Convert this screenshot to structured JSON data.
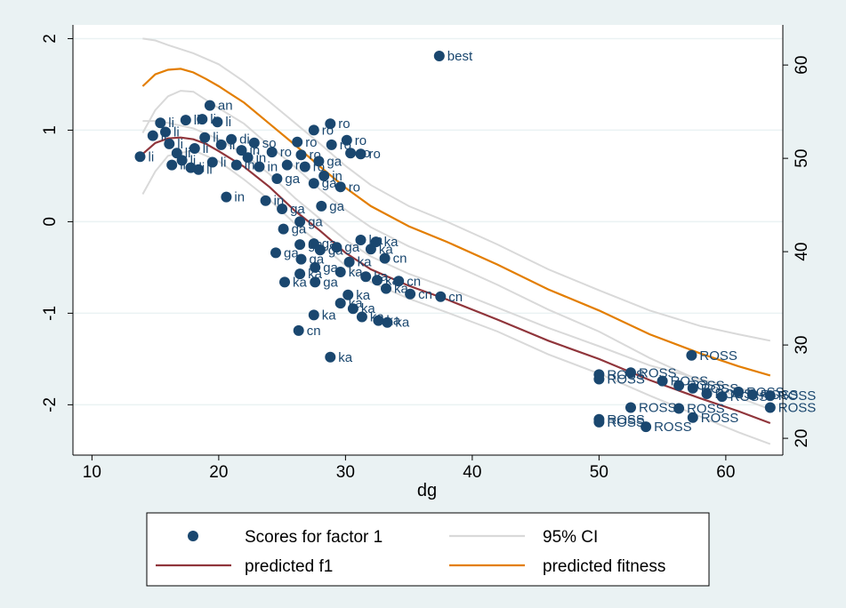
{
  "chart_data": {
    "type": "scatter",
    "xlabel": "dg",
    "x_ticks": [
      10,
      20,
      30,
      40,
      50,
      60
    ],
    "y_left_ticks": [
      -2,
      -1,
      0,
      1,
      2
    ],
    "y_right_ticks": [
      20,
      30,
      40,
      50,
      60
    ],
    "xlim": [
      8.5,
      64.5
    ],
    "ylim_left": [
      -2.55,
      2.15
    ],
    "ylim_right": [
      18.2,
      64.3
    ],
    "grid": true,
    "legend_position": "bottom",
    "colors": {
      "background": "#eaf2f3",
      "plot_background": "#ffffff",
      "gridline": "#eaf2f3",
      "points": "#1a476f",
      "ci": "#d9d9d9",
      "predicted_f1": "#90353b",
      "predicted_fitness": "#e37e00"
    },
    "legend": [
      {
        "label": "Scores for factor 1",
        "kind": "marker",
        "color": "#1a476f"
      },
      {
        "label": "95% CI",
        "kind": "line",
        "color": "#d9d9d9"
      },
      {
        "label": "predicted f1",
        "kind": "line",
        "color": "#90353b"
      },
      {
        "label": "predicted fitness",
        "kind": "line",
        "color": "#e37e00"
      }
    ],
    "series": [
      {
        "name": "Scores for factor 1",
        "axis": "left",
        "points": [
          {
            "x": 13.8,
            "y": 0.71,
            "label": "li"
          },
          {
            "x": 14.8,
            "y": 0.94,
            "label": "li"
          },
          {
            "x": 15.4,
            "y": 1.08,
            "label": "li"
          },
          {
            "x": 15.8,
            "y": 0.98,
            "label": "li"
          },
          {
            "x": 16.1,
            "y": 0.85,
            "label": "li"
          },
          {
            "x": 16.3,
            "y": 0.62,
            "label": "li"
          },
          {
            "x": 16.7,
            "y": 0.75,
            "label": "li"
          },
          {
            "x": 17.1,
            "y": 0.67,
            "label": "li"
          },
          {
            "x": 17.4,
            "y": 1.11,
            "label": "li"
          },
          {
            "x": 17.8,
            "y": 0.59,
            "label": "li"
          },
          {
            "x": 18.1,
            "y": 0.8,
            "label": "li"
          },
          {
            "x": 18.4,
            "y": 0.57,
            "label": "li"
          },
          {
            "x": 18.7,
            "y": 1.12,
            "label": "li"
          },
          {
            "x": 18.9,
            "y": 0.92,
            "label": "li"
          },
          {
            "x": 19.3,
            "y": 1.27,
            "label": "an"
          },
          {
            "x": 19.5,
            "y": 0.65,
            "label": "li"
          },
          {
            "x": 19.9,
            "y": 1.09,
            "label": "li"
          },
          {
            "x": 20.2,
            "y": 0.84,
            "label": "li"
          },
          {
            "x": 20.6,
            "y": 0.27,
            "label": "in"
          },
          {
            "x": 21.0,
            "y": 0.9,
            "label": "di"
          },
          {
            "x": 21.4,
            "y": 0.62,
            "label": "in"
          },
          {
            "x": 21.8,
            "y": 0.78,
            "label": "in"
          },
          {
            "x": 22.3,
            "y": 0.7,
            "label": "in"
          },
          {
            "x": 22.8,
            "y": 0.86,
            "label": "so"
          },
          {
            "x": 23.2,
            "y": 0.6,
            "label": "in"
          },
          {
            "x": 23.7,
            "y": 0.23,
            "label": "in"
          },
          {
            "x": 24.2,
            "y": 0.76,
            "label": "ro"
          },
          {
            "x": 24.6,
            "y": 0.47,
            "label": "ga"
          },
          {
            "x": 25.0,
            "y": 0.14,
            "label": "ga"
          },
          {
            "x": 25.4,
            "y": 0.62,
            "label": "ro"
          },
          {
            "x": 26.2,
            "y": 0.87,
            "label": "ro"
          },
          {
            "x": 26.5,
            "y": 0.73,
            "label": "ro"
          },
          {
            "x": 26.8,
            "y": 0.6,
            "label": "ro"
          },
          {
            "x": 27.5,
            "y": 1.0,
            "label": "ro"
          },
          {
            "x": 27.5,
            "y": 0.42,
            "label": "ga"
          },
          {
            "x": 27.9,
            "y": 0.66,
            "label": "ga"
          },
          {
            "x": 28.3,
            "y": 0.5,
            "label": "in"
          },
          {
            "x": 28.8,
            "y": 1.07,
            "label": "ro"
          },
          {
            "x": 28.9,
            "y": 0.84,
            "label": "ro"
          },
          {
            "x": 29.6,
            "y": 0.38,
            "label": "ro"
          },
          {
            "x": 30.1,
            "y": 0.89,
            "label": "ro"
          },
          {
            "x": 30.4,
            "y": 0.75,
            "label": "ro"
          },
          {
            "x": 31.2,
            "y": 0.74,
            "label": "ro"
          },
          {
            "x": 28.1,
            "y": 0.17,
            "label": "ga"
          },
          {
            "x": 26.4,
            "y": 0.0,
            "label": "ga"
          },
          {
            "x": 25.1,
            "y": -0.08,
            "label": "ga"
          },
          {
            "x": 26.4,
            "y": -0.25,
            "label": "ga"
          },
          {
            "x": 24.5,
            "y": -0.34,
            "label": "ga"
          },
          {
            "x": 26.5,
            "y": -0.41,
            "label": "ga"
          },
          {
            "x": 27.5,
            "y": -0.24,
            "label": "ga"
          },
          {
            "x": 28.0,
            "y": -0.31,
            "label": "ga"
          },
          {
            "x": 29.3,
            "y": -0.28,
            "label": "ga"
          },
          {
            "x": 27.6,
            "y": -0.5,
            "label": "ga"
          },
          {
            "x": 25.2,
            "y": -0.66,
            "label": "ka"
          },
          {
            "x": 26.4,
            "y": -0.57,
            "label": "ka"
          },
          {
            "x": 27.6,
            "y": -0.66,
            "label": "ga"
          },
          {
            "x": 29.6,
            "y": -0.55,
            "label": "ka"
          },
          {
            "x": 30.3,
            "y": -0.44,
            "label": "ka"
          },
          {
            "x": 31.2,
            "y": -0.2,
            "label": "ka"
          },
          {
            "x": 32.0,
            "y": -0.3,
            "label": "ka"
          },
          {
            "x": 32.4,
            "y": -0.22,
            "label": "ka"
          },
          {
            "x": 33.1,
            "y": -0.4,
            "label": "cn"
          },
          {
            "x": 31.6,
            "y": -0.6,
            "label": "ka"
          },
          {
            "x": 32.5,
            "y": -0.64,
            "label": "ka"
          },
          {
            "x": 33.2,
            "y": -0.73,
            "label": "ka"
          },
          {
            "x": 34.2,
            "y": -0.65,
            "label": "cn"
          },
          {
            "x": 35.1,
            "y": -0.79,
            "label": "cn"
          },
          {
            "x": 37.5,
            "y": -0.82,
            "label": "cn"
          },
          {
            "x": 29.6,
            "y": -0.89,
            "label": "ka"
          },
          {
            "x": 30.2,
            "y": -0.8,
            "label": "ka"
          },
          {
            "x": 30.6,
            "y": -0.95,
            "label": "ka"
          },
          {
            "x": 31.3,
            "y": -1.04,
            "label": "ka"
          },
          {
            "x": 32.6,
            "y": -1.08,
            "label": "ka"
          },
          {
            "x": 33.3,
            "y": -1.1,
            "label": "ka"
          },
          {
            "x": 27.5,
            "y": -1.02,
            "label": "ka"
          },
          {
            "x": 26.3,
            "y": -1.19,
            "label": "cn"
          },
          {
            "x": 28.8,
            "y": -1.48,
            "label": "ka"
          },
          {
            "x": 37.4,
            "y": 1.81,
            "label": "best"
          },
          {
            "x": 57.3,
            "y": -1.46,
            "label": "ROSS"
          },
          {
            "x": 50.0,
            "y": -1.67,
            "label": "ROSS"
          },
          {
            "x": 50.0,
            "y": -1.72,
            "label": "ROSS"
          },
          {
            "x": 52.5,
            "y": -1.65,
            "label": "ROSS"
          },
          {
            "x": 55.0,
            "y": -1.74,
            "label": "ROSS"
          },
          {
            "x": 56.3,
            "y": -1.79,
            "label": "ROSS"
          },
          {
            "x": 57.4,
            "y": -1.82,
            "label": "ROSS"
          },
          {
            "x": 58.5,
            "y": -1.88,
            "label": "ROSS"
          },
          {
            "x": 59.7,
            "y": -1.91,
            "label": "ROSS"
          },
          {
            "x": 61.0,
            "y": -1.86,
            "label": "ROSS"
          },
          {
            "x": 62.1,
            "y": -1.89,
            "label": "ROSS"
          },
          {
            "x": 63.5,
            "y": -1.9,
            "label": "ROSS"
          },
          {
            "x": 63.5,
            "y": -2.03,
            "label": "ROSS"
          },
          {
            "x": 52.5,
            "y": -2.03,
            "label": "ROSS"
          },
          {
            "x": 56.3,
            "y": -2.04,
            "label": "ROSS"
          },
          {
            "x": 57.4,
            "y": -2.14,
            "label": "ROSS"
          },
          {
            "x": 50.0,
            "y": -2.16,
            "label": "ROSS"
          },
          {
            "x": 50.0,
            "y": -2.19,
            "label": "ROSS"
          },
          {
            "x": 53.7,
            "y": -2.24,
            "label": "ROSS"
          }
        ]
      },
      {
        "name": "predicted f1",
        "axis": "left",
        "points": [
          [
            14,
            0.74
          ],
          [
            15,
            0.86
          ],
          [
            16,
            0.91
          ],
          [
            17,
            0.92
          ],
          [
            18,
            0.9
          ],
          [
            19,
            0.85
          ],
          [
            20,
            0.77
          ],
          [
            22,
            0.6
          ],
          [
            24,
            0.38
          ],
          [
            26,
            0.12
          ],
          [
            28,
            -0.1
          ],
          [
            30,
            -0.34
          ],
          [
            32,
            -0.52
          ],
          [
            35,
            -0.7
          ],
          [
            38,
            -0.85
          ],
          [
            42,
            -1.07
          ],
          [
            46,
            -1.3
          ],
          [
            50,
            -1.5
          ],
          [
            54,
            -1.73
          ],
          [
            58,
            -1.93
          ],
          [
            61,
            -2.07
          ],
          [
            63.5,
            -2.2
          ]
        ]
      },
      {
        "name": "predicted fitness",
        "axis": "left",
        "points": [
          [
            14,
            1.48
          ],
          [
            15,
            1.61
          ],
          [
            16,
            1.66
          ],
          [
            17,
            1.67
          ],
          [
            18,
            1.63
          ],
          [
            19,
            1.56
          ],
          [
            20,
            1.48
          ],
          [
            22,
            1.3
          ],
          [
            24,
            1.07
          ],
          [
            26,
            0.84
          ],
          [
            28,
            0.6
          ],
          [
            30,
            0.37
          ],
          [
            32,
            0.17
          ],
          [
            35,
            -0.05
          ],
          [
            38,
            -0.22
          ],
          [
            42,
            -0.47
          ],
          [
            46,
            -0.74
          ],
          [
            50,
            -0.97
          ],
          [
            54,
            -1.23
          ],
          [
            58,
            -1.44
          ],
          [
            61,
            -1.58
          ],
          [
            63.5,
            -1.68
          ]
        ]
      },
      {
        "name": "95% CI upper (predicted f1)",
        "axis": "left",
        "points": [
          [
            14,
            1.1
          ],
          [
            15,
            1.1
          ],
          [
            16,
            1.08
          ],
          [
            18,
            1.02
          ],
          [
            20,
            0.9
          ],
          [
            22,
            0.74
          ],
          [
            24,
            0.52
          ],
          [
            26,
            0.26
          ],
          [
            28,
            0.03
          ],
          [
            30,
            -0.2
          ],
          [
            32,
            -0.38
          ],
          [
            35,
            -0.57
          ],
          [
            38,
            -0.72
          ],
          [
            42,
            -0.94
          ],
          [
            46,
            -1.16
          ],
          [
            50,
            -1.36
          ],
          [
            54,
            -1.57
          ],
          [
            58,
            -1.72
          ],
          [
            61,
            -1.82
          ],
          [
            63.5,
            -1.9
          ]
        ]
      },
      {
        "name": "95% CI lower (predicted f1)",
        "axis": "left",
        "points": [
          [
            14,
            0.3
          ],
          [
            15,
            0.55
          ],
          [
            16,
            0.72
          ],
          [
            18,
            0.78
          ],
          [
            20,
            0.66
          ],
          [
            22,
            0.46
          ],
          [
            24,
            0.24
          ],
          [
            26,
            -0.02
          ],
          [
            28,
            -0.24
          ],
          [
            30,
            -0.48
          ],
          [
            32,
            -0.66
          ],
          [
            35,
            -0.84
          ],
          [
            38,
            -0.99
          ],
          [
            42,
            -1.2
          ],
          [
            46,
            -1.45
          ],
          [
            50,
            -1.66
          ],
          [
            54,
            -1.9
          ],
          [
            58,
            -2.13
          ],
          [
            61,
            -2.3
          ],
          [
            63.5,
            -2.43
          ]
        ]
      },
      {
        "name": "95% CI upper (predicted fitness)",
        "axis": "left",
        "points": [
          [
            14,
            2.0
          ],
          [
            15,
            1.98
          ],
          [
            16,
            1.93
          ],
          [
            18,
            1.84
          ],
          [
            20,
            1.72
          ],
          [
            22,
            1.53
          ],
          [
            24,
            1.31
          ],
          [
            26,
            1.08
          ],
          [
            28,
            0.85
          ],
          [
            30,
            0.61
          ],
          [
            32,
            0.4
          ],
          [
            35,
            0.17
          ],
          [
            38,
            0.0
          ],
          [
            42,
            -0.25
          ],
          [
            46,
            -0.52
          ],
          [
            50,
            -0.75
          ],
          [
            54,
            -0.97
          ],
          [
            58,
            -1.14
          ],
          [
            61,
            -1.23
          ],
          [
            63.5,
            -1.3
          ]
        ]
      },
      {
        "name": "95% CI lower (predicted fitness)",
        "axis": "left",
        "points": [
          [
            14,
            0.97
          ],
          [
            15,
            1.22
          ],
          [
            16,
            1.37
          ],
          [
            17,
            1.43
          ],
          [
            18,
            1.42
          ],
          [
            20,
            1.24
          ],
          [
            22,
            1.07
          ],
          [
            24,
            0.83
          ],
          [
            26,
            0.6
          ],
          [
            28,
            0.35
          ],
          [
            30,
            0.13
          ],
          [
            32,
            -0.06
          ],
          [
            35,
            -0.27
          ],
          [
            38,
            -0.44
          ],
          [
            42,
            -0.69
          ],
          [
            46,
            -0.96
          ],
          [
            50,
            -1.2
          ],
          [
            54,
            -1.49
          ],
          [
            58,
            -1.74
          ],
          [
            61,
            -1.92
          ],
          [
            63.5,
            -2.05
          ]
        ]
      }
    ]
  }
}
